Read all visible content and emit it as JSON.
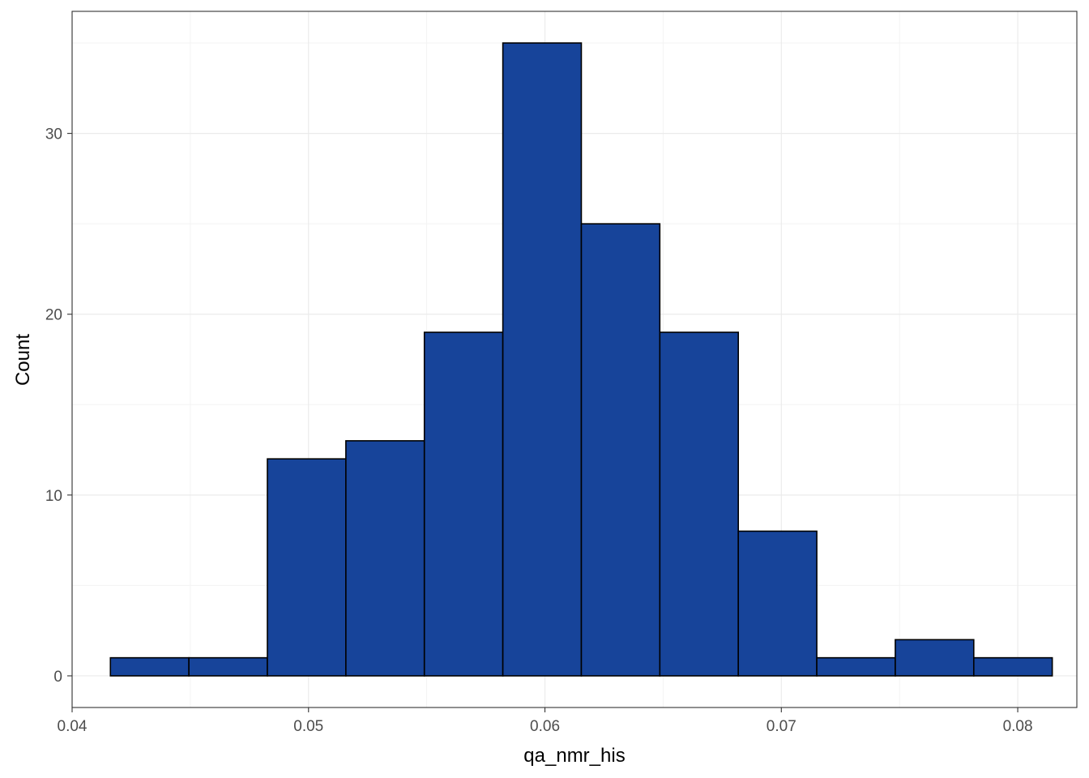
{
  "chart_data": {
    "type": "bar",
    "subtype": "histogram",
    "title": "",
    "xlabel": "qa_nmr_his",
    "ylabel": "Count",
    "xlim": [
      0.04,
      0.0825
    ],
    "ylim": [
      -1.75,
      36.75
    ],
    "grid": true,
    "legend": "none",
    "x_ticks": [
      0.04,
      0.05,
      0.06,
      0.07,
      0.08
    ],
    "x_tick_labels": [
      "0.04",
      "0.05",
      "0.06",
      "0.07",
      "0.08"
    ],
    "y_ticks": [
      0,
      10,
      20,
      30
    ],
    "y_tick_labels": [
      "0",
      "10",
      "20",
      "30"
    ],
    "bins": [
      {
        "x0": 0.04162,
        "x1": 0.04494,
        "count": 1
      },
      {
        "x0": 0.04494,
        "x1": 0.04826,
        "count": 1
      },
      {
        "x0": 0.04826,
        "x1": 0.05158,
        "count": 12
      },
      {
        "x0": 0.05158,
        "x1": 0.0549,
        "count": 13
      },
      {
        "x0": 0.0549,
        "x1": 0.05822,
        "count": 19
      },
      {
        "x0": 0.05822,
        "x1": 0.06154,
        "count": 35
      },
      {
        "x0": 0.06154,
        "x1": 0.06486,
        "count": 25
      },
      {
        "x0": 0.06486,
        "x1": 0.06818,
        "count": 19
      },
      {
        "x0": 0.06818,
        "x1": 0.0715,
        "count": 8
      },
      {
        "x0": 0.0715,
        "x1": 0.07482,
        "count": 1
      },
      {
        "x0": 0.07482,
        "x1": 0.07814,
        "count": 2
      },
      {
        "x0": 0.07814,
        "x1": 0.08146,
        "count": 1
      }
    ],
    "colors": {
      "bar_fill": "#17449a",
      "bar_stroke": "#000000",
      "grid_major": "#ebebeb",
      "grid_minor": "#f3f3f3",
      "panel_border": "#333333"
    }
  }
}
